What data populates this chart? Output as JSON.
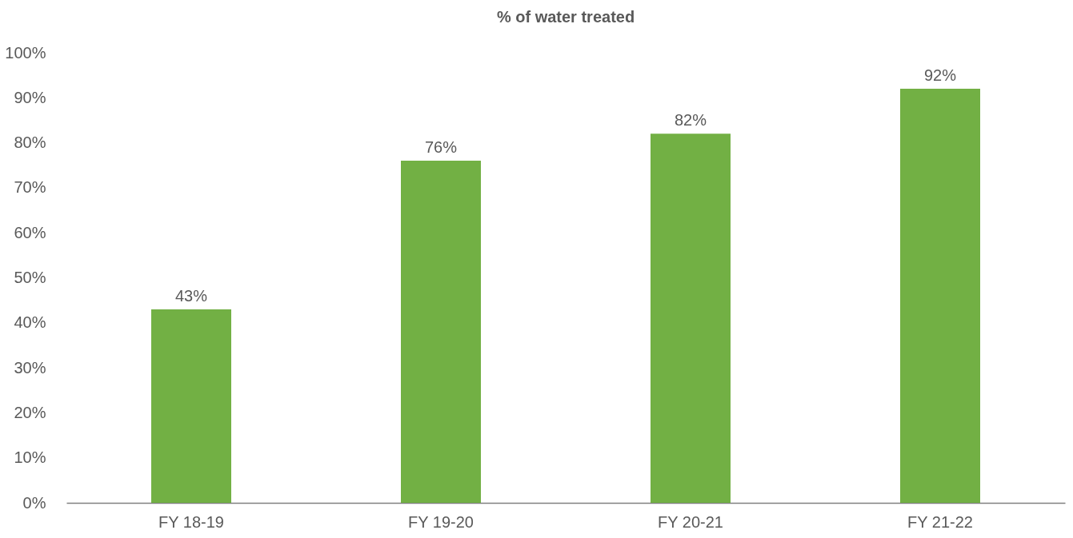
{
  "chart_data": {
    "type": "bar",
    "title": "% of water treated",
    "categories": [
      "FY 18-19",
      "FY 19-20",
      "FY 20-21",
      "FY 21-22"
    ],
    "values": [
      43,
      76,
      82,
      92
    ],
    "value_labels": [
      "43%",
      "76%",
      "82%",
      "92%"
    ],
    "color": "#72b044",
    "ylim": [
      0,
      100
    ],
    "yticks": [
      {
        "value": 0,
        "label": "0%"
      },
      {
        "value": 10,
        "label": "10%"
      },
      {
        "value": 20,
        "label": "20%"
      },
      {
        "value": 30,
        "label": "30%"
      },
      {
        "value": 40,
        "label": "40%"
      },
      {
        "value": 50,
        "label": "50%"
      },
      {
        "value": 60,
        "label": "60%"
      },
      {
        "value": 70,
        "label": "70%"
      },
      {
        "value": 80,
        "label": "80%"
      },
      {
        "value": 90,
        "label": "90%"
      },
      {
        "value": 100,
        "label": "100%"
      }
    ],
    "grid": false
  }
}
